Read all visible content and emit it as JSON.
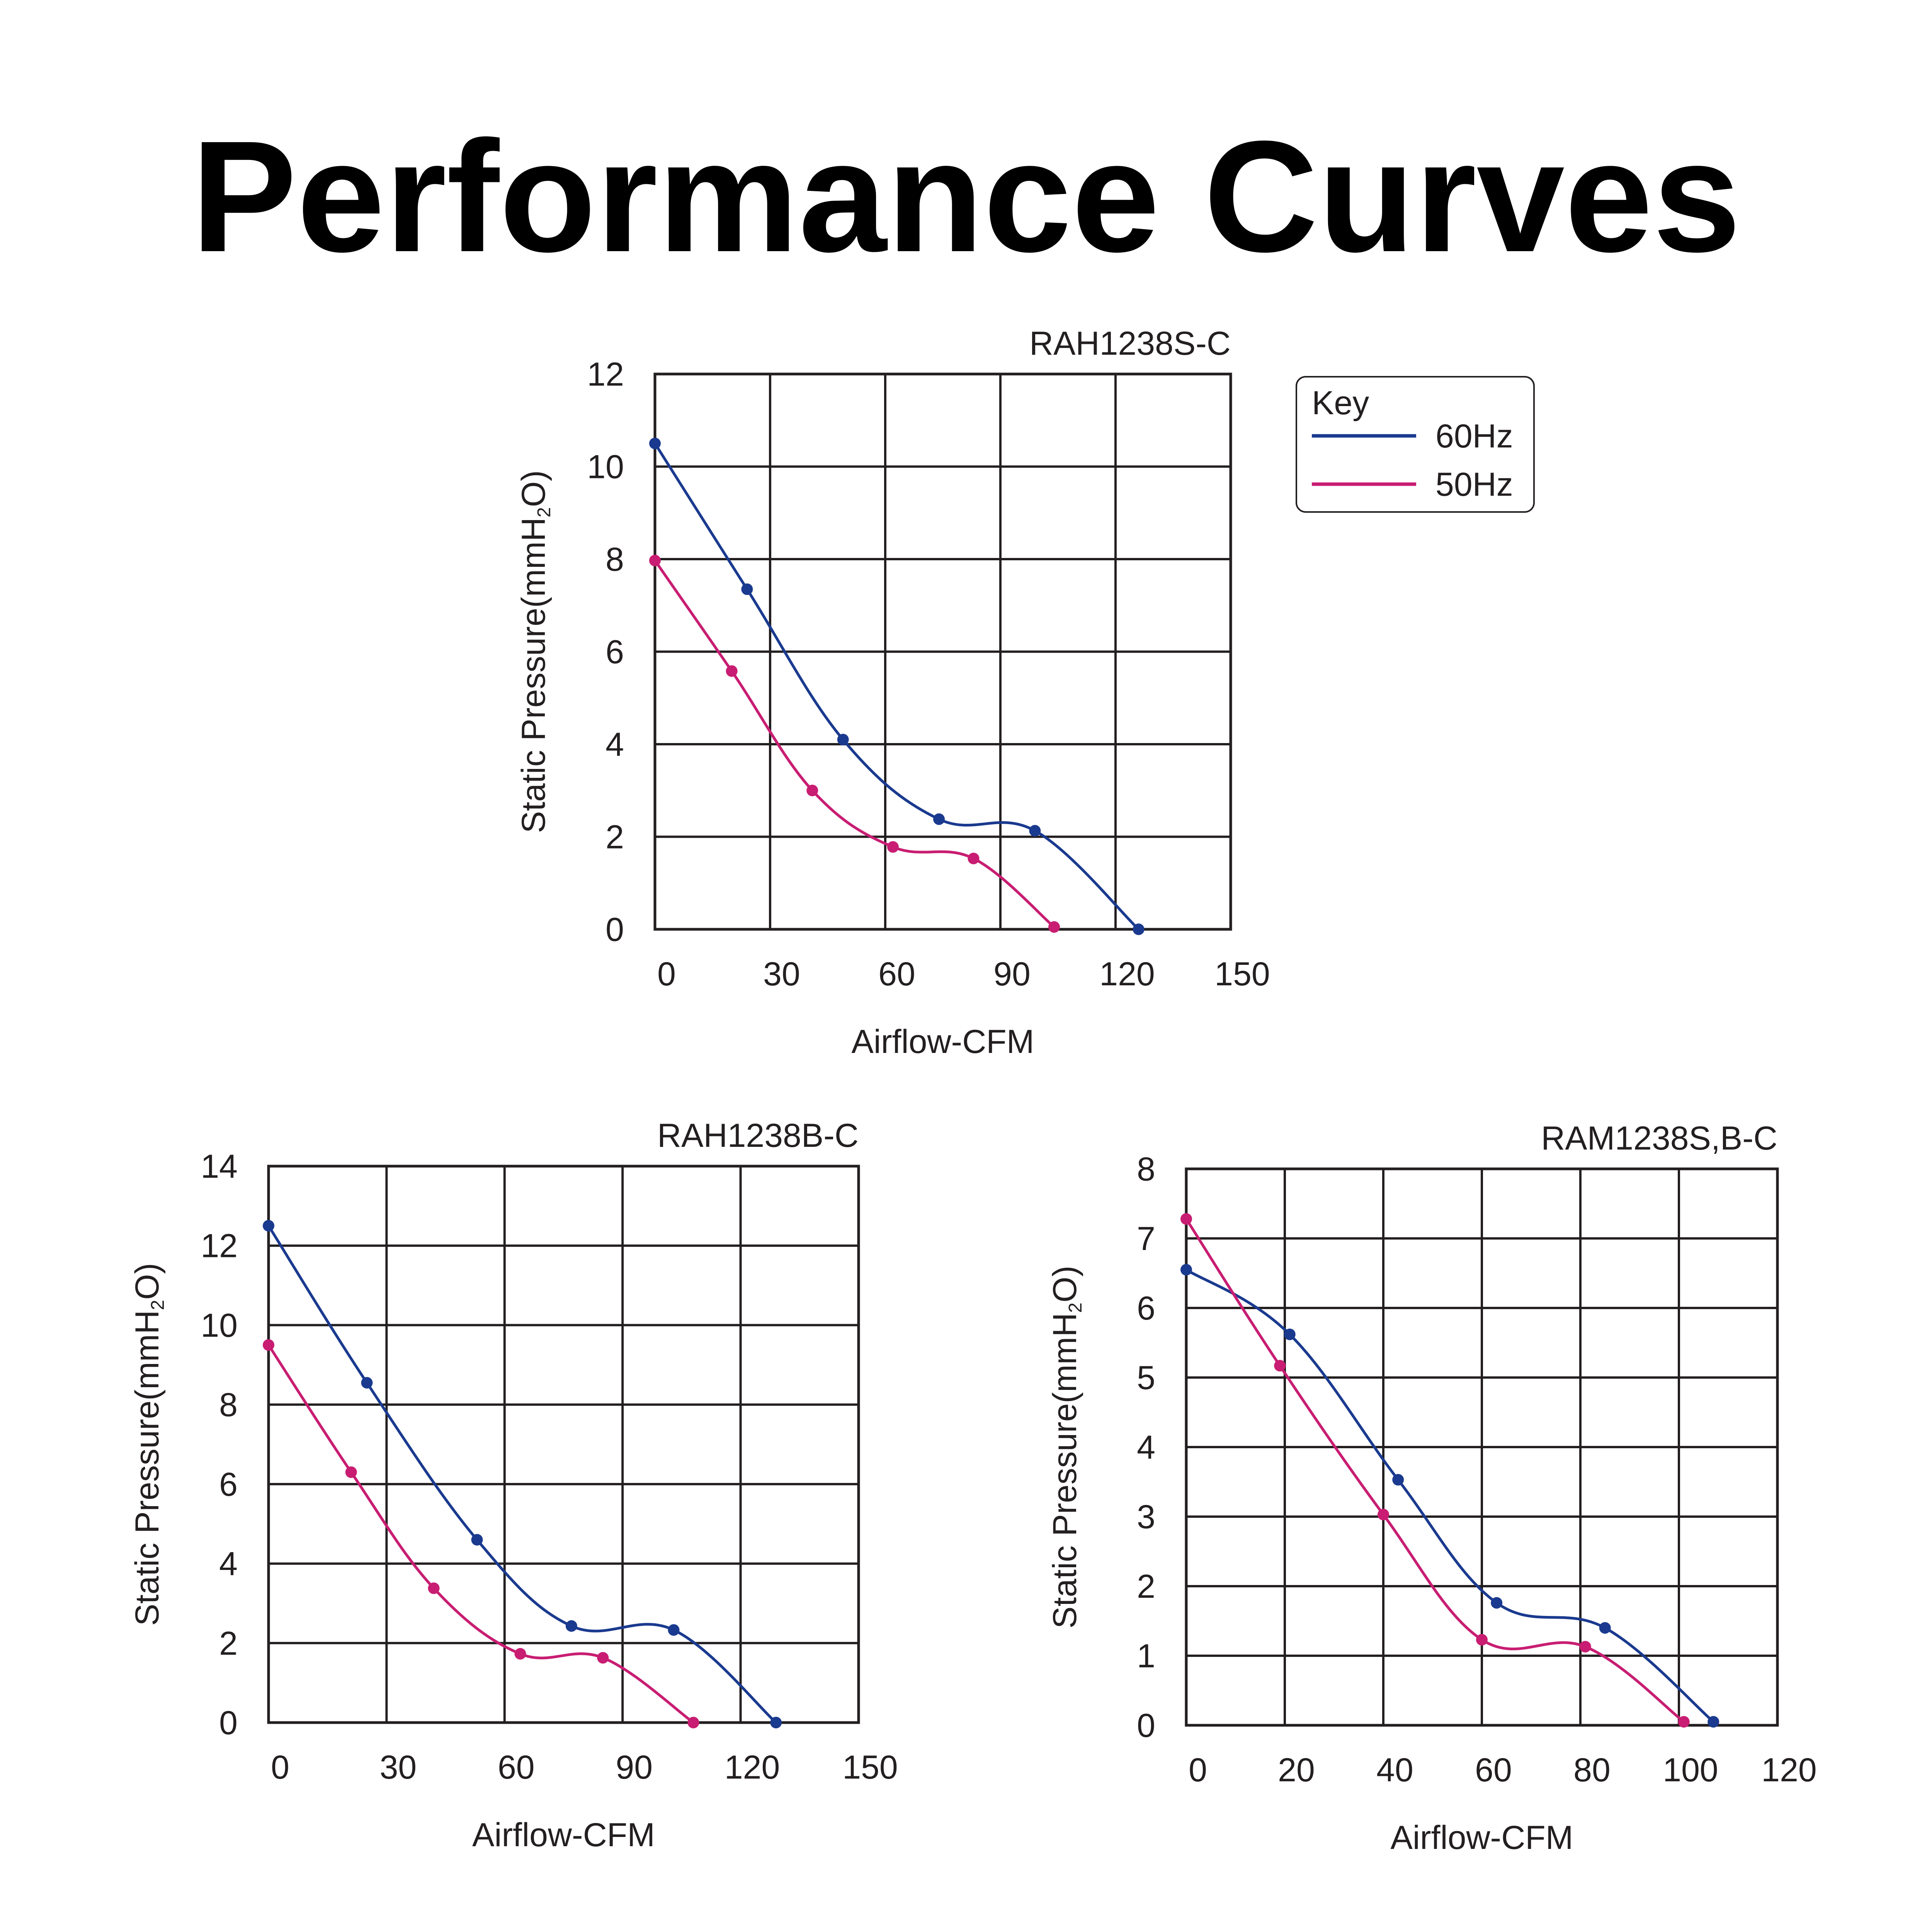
{
  "page_title": "Performance Curves",
  "legend": {
    "title": "Key",
    "items": [
      {
        "label": "60Hz",
        "color": "#1a3a8f"
      },
      {
        "label": "50Hz",
        "color": "#c81d72"
      }
    ]
  },
  "chart_data": [
    {
      "type": "line",
      "title": "RAH1238S-C",
      "xlabel": "Airflow-CFM",
      "ylabel": "Static Pressure(mmH",
      "ylabel_sub": "2",
      "ylabel_tail": "O)",
      "xlim": [
        0,
        150
      ],
      "ylim": [
        0,
        12
      ],
      "xticks": [
        0,
        30,
        60,
        90,
        120,
        150
      ],
      "yticks": [
        0,
        2,
        4,
        6,
        8,
        10,
        12
      ],
      "grid": true,
      "series": [
        {
          "name": "60Hz",
          "color": "#1a3a8f",
          "x": [
            0,
            24,
            49,
            74,
            99,
            126
          ],
          "y": [
            10.5,
            7.35,
            4.1,
            2.38,
            2.13,
            0
          ]
        },
        {
          "name": "50Hz",
          "color": "#c81d72",
          "x": [
            0,
            20,
            41,
            62,
            83,
            104
          ],
          "y": [
            7.97,
            5.58,
            3.0,
            1.78,
            1.53,
            0.05
          ]
        }
      ]
    },
    {
      "type": "line",
      "title": "RAH1238B-C",
      "xlabel": "Airflow-CFM",
      "ylabel": "Static Pressure(mmH",
      "ylabel_sub": "2",
      "ylabel_tail": "O)",
      "xlim": [
        0,
        150
      ],
      "ylim": [
        0,
        14
      ],
      "xticks": [
        0,
        30,
        60,
        90,
        120,
        150
      ],
      "yticks": [
        0,
        2,
        4,
        6,
        8,
        10,
        12,
        14
      ],
      "grid": true,
      "series": [
        {
          "name": "60Hz",
          "color": "#1a3a8f",
          "x": [
            0,
            25,
            53,
            77,
            103,
            129
          ],
          "y": [
            12.5,
            8.55,
            4.6,
            2.43,
            2.33,
            0
          ]
        },
        {
          "name": "50Hz",
          "color": "#c81d72",
          "x": [
            0,
            21,
            42,
            64,
            85,
            108
          ],
          "y": [
            9.5,
            6.3,
            3.38,
            1.73,
            1.63,
            0
          ]
        }
      ]
    },
    {
      "type": "line",
      "title": "RAM1238S,B-C",
      "xlabel": "Airflow-CFM",
      "ylabel": "Static Pressure(mmH",
      "ylabel_sub": "2",
      "ylabel_tail": "O)",
      "xlim": [
        0,
        120
      ],
      "ylim": [
        0,
        8
      ],
      "xticks": [
        0,
        20,
        40,
        60,
        80,
        100,
        120
      ],
      "yticks": [
        0,
        1,
        2,
        3,
        4,
        5,
        6,
        7,
        8
      ],
      "grid": true,
      "series": [
        {
          "name": "60Hz",
          "color": "#1a3a8f",
          "x": [
            0,
            21,
            43,
            63,
            85,
            107
          ],
          "y": [
            6.55,
            5.62,
            3.53,
            1.76,
            1.4,
            0.05
          ]
        },
        {
          "name": "50Hz",
          "color": "#c81d72",
          "x": [
            0,
            19,
            40,
            60,
            81,
            101
          ],
          "y": [
            7.28,
            5.17,
            3.03,
            1.23,
            1.13,
            0.05
          ]
        }
      ]
    }
  ]
}
